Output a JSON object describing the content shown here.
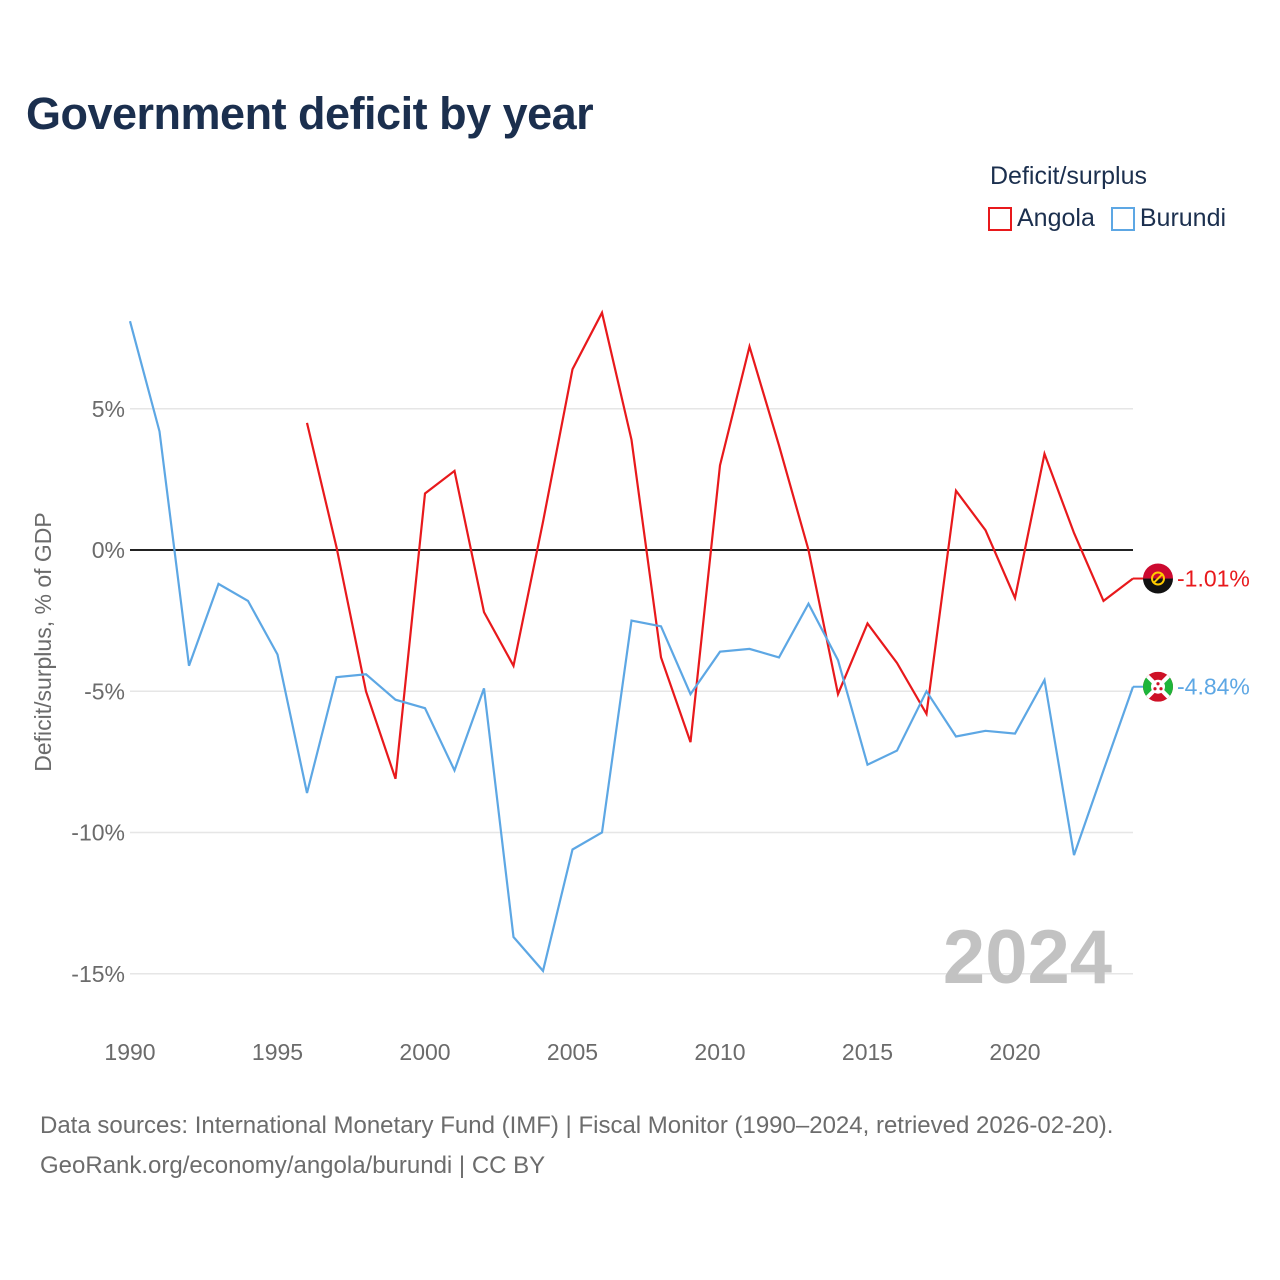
{
  "title": "Government deficit by year",
  "legend": {
    "title": "Deficit/surplus",
    "items": [
      {
        "label": "Angola",
        "color": "#e8191c"
      },
      {
        "label": "Burundi",
        "color": "#5da7e4"
      }
    ]
  },
  "footer": {
    "line1": "Data sources: International Monetary Fund (IMF) | Fiscal Monitor (1990–2024, retrieved 2026-02-20).",
    "line2": "GeoRank.org/economy/angola/burundi | CC BY"
  },
  "chart_data": {
    "type": "line",
    "title": "Government deficit by year",
    "ylabel": "Deficit/surplus, % of GDP",
    "xlabel": "",
    "xlim": [
      1990,
      2024
    ],
    "ylim": [
      -16.5,
      9
    ],
    "x_ticks": [
      1990,
      1995,
      2000,
      2005,
      2010,
      2015,
      2020
    ],
    "y_ticks": [
      5,
      0,
      -5,
      -10,
      -15
    ],
    "y_tick_labels": [
      "5%",
      "0%",
      "-5%",
      "-10%",
      "-15%"
    ],
    "grid": true,
    "year_watermark": "2024",
    "series": [
      {
        "name": "Angola",
        "color": "#e8191c",
        "end_label": "-1.01%",
        "points": [
          [
            1996,
            4.5
          ],
          [
            1997,
            0.1
          ],
          [
            1998,
            -5.0
          ],
          [
            1999,
            -8.1
          ],
          [
            2000,
            2.0
          ],
          [
            2001,
            2.8
          ],
          [
            2002,
            -2.2
          ],
          [
            2003,
            -4.1
          ],
          [
            2004,
            1.0
          ],
          [
            2005,
            6.4
          ],
          [
            2006,
            8.4
          ],
          [
            2007,
            3.9
          ],
          [
            2008,
            -3.8
          ],
          [
            2009,
            -6.8
          ],
          [
            2010,
            3.0
          ],
          [
            2011,
            7.2
          ],
          [
            2012,
            3.7
          ],
          [
            2013,
            0.0
          ],
          [
            2014,
            -5.1
          ],
          [
            2015,
            -2.6
          ],
          [
            2016,
            -4.0
          ],
          [
            2017,
            -5.8
          ],
          [
            2018,
            2.1
          ],
          [
            2019,
            0.7
          ],
          [
            2020,
            -1.7
          ],
          [
            2021,
            3.4
          ],
          [
            2022,
            0.6
          ],
          [
            2023,
            -1.8
          ],
          [
            2024,
            -1.01
          ]
        ]
      },
      {
        "name": "Burundi",
        "color": "#5da7e4",
        "end_label": "-4.84%",
        "points": [
          [
            1990,
            8.1
          ],
          [
            1991,
            4.2
          ],
          [
            1992,
            -4.1
          ],
          [
            1993,
            -1.2
          ],
          [
            1994,
            -1.8
          ],
          [
            1995,
            -3.7
          ],
          [
            1996,
            -8.6
          ],
          [
            1997,
            -4.5
          ],
          [
            1998,
            -4.4
          ],
          [
            1999,
            -5.3
          ],
          [
            2000,
            -5.6
          ],
          [
            2001,
            -7.8
          ],
          [
            2002,
            -4.9
          ],
          [
            2003,
            -13.7
          ],
          [
            2004,
            -14.9
          ],
          [
            2005,
            -10.6
          ],
          [
            2006,
            -10.0
          ],
          [
            2007,
            -2.5
          ],
          [
            2008,
            -2.7
          ],
          [
            2009,
            -5.1
          ],
          [
            2010,
            -3.6
          ],
          [
            2011,
            -3.5
          ],
          [
            2012,
            -3.8
          ],
          [
            2013,
            -1.9
          ],
          [
            2014,
            -3.9
          ],
          [
            2015,
            -7.6
          ],
          [
            2016,
            -7.1
          ],
          [
            2017,
            -5.0
          ],
          [
            2018,
            -6.6
          ],
          [
            2019,
            -6.4
          ],
          [
            2020,
            -6.5
          ],
          [
            2021,
            -4.6
          ],
          [
            2022,
            -10.8
          ],
          [
            2023,
            -7.8
          ],
          [
            2024,
            -4.84
          ]
        ]
      }
    ]
  }
}
